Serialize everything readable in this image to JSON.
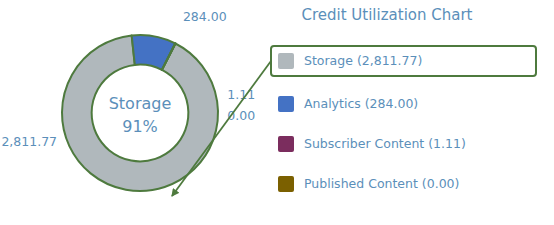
{
  "chart_data": {
    "type": "pie",
    "title": "Credit Utilization Chart",
    "categories": [
      "Storage (2,811.77)",
      "Analytics (284.00)",
      "Subscriber Content (1.11)",
      "Published Content (0.00)"
    ],
    "values": [
      2811.77,
      284.0,
      1.11,
      0.0
    ],
    "value_labels": [
      "2,811.77",
      "284.00",
      "1.11",
      "0.00"
    ],
    "data_labels": true,
    "colors": [
      "#b0b8bc",
      "#4472c4",
      "#7b2d5e",
      "#7b6000"
    ],
    "color": "#4e7a3e",
    "legend": "right",
    "annotations": [
      {
        "text": "Storage"
      },
      {
        "text": "91%",
        "value": 91
      }
    ]
  }
}
